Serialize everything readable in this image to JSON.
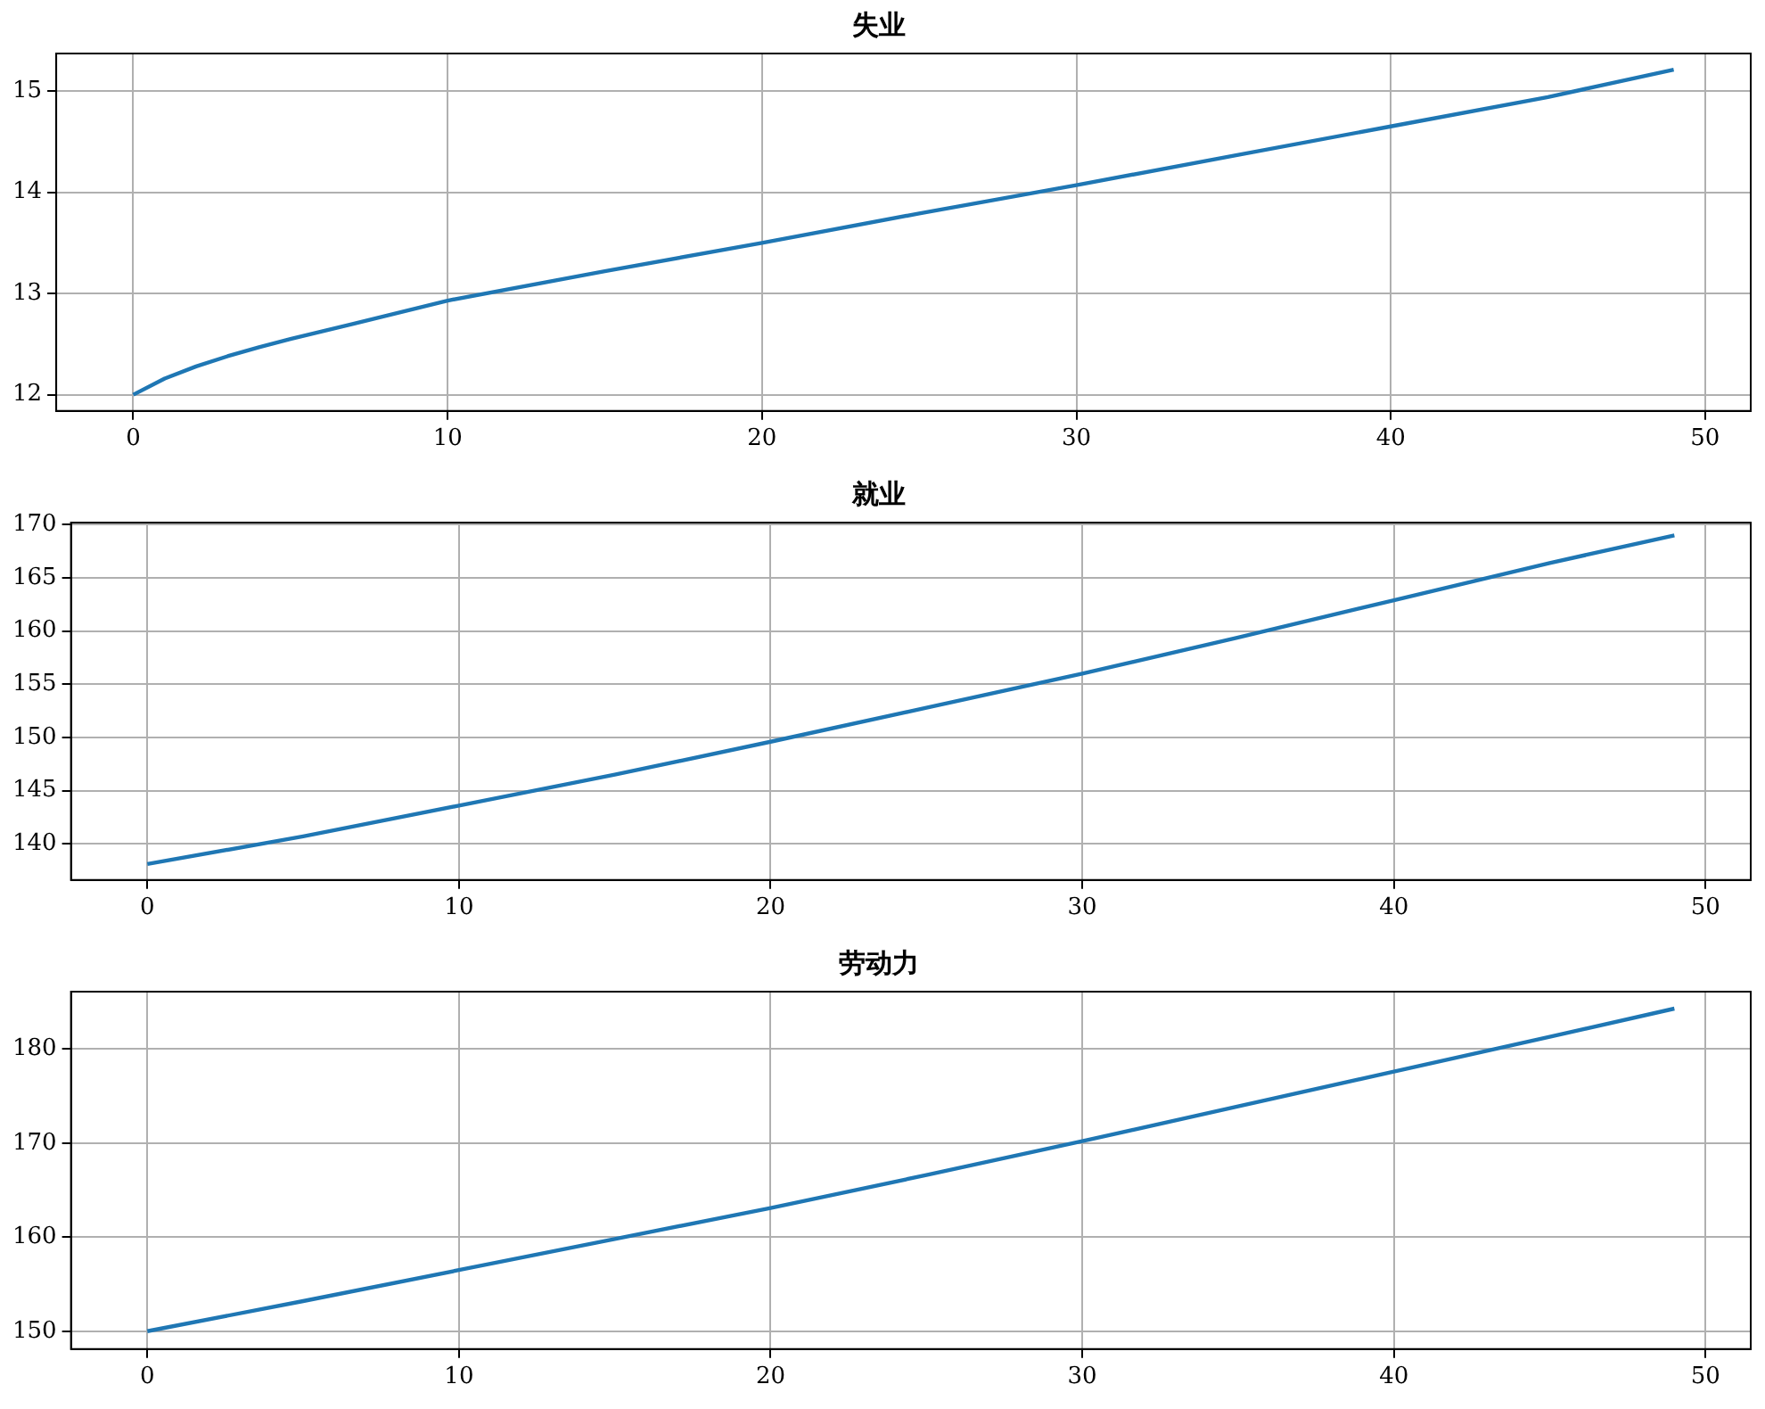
{
  "chart_data": [
    {
      "type": "line",
      "title": "失业",
      "x": [
        0,
        1,
        2,
        3,
        4,
        5,
        7,
        10,
        15,
        20,
        25,
        30,
        35,
        40,
        45,
        49
      ],
      "values": [
        12.0,
        12.16,
        12.28,
        12.38,
        12.47,
        12.55,
        12.7,
        12.93,
        13.22,
        13.5,
        13.79,
        14.07,
        14.36,
        14.65,
        14.94,
        15.21
      ],
      "color": "#1f77b4",
      "xlim": [
        -2.45,
        51.45
      ],
      "xticks": [
        0,
        10,
        20,
        30,
        40,
        50
      ],
      "ylim": [
        11.84,
        15.37
      ],
      "yticks": [
        12,
        13,
        14,
        15
      ],
      "grid": true
    },
    {
      "type": "line",
      "title": "就业",
      "x": [
        0,
        5,
        10,
        15,
        20,
        25,
        30,
        35,
        40,
        45,
        49
      ],
      "values": [
        138.1,
        140.7,
        143.6,
        146.5,
        149.6,
        152.8,
        156.0,
        159.4,
        162.9,
        166.4,
        169.0
      ],
      "color": "#1f77b4",
      "xlim": [
        -2.45,
        51.45
      ],
      "xticks": [
        0,
        10,
        20,
        30,
        40,
        50
      ],
      "ylim": [
        136.6,
        170.2
      ],
      "yticks": [
        140,
        145,
        150,
        155,
        160,
        165,
        170
      ],
      "grid": true
    },
    {
      "type": "line",
      "title": "劳动力",
      "x": [
        0,
        5,
        10,
        15,
        20,
        25,
        30,
        35,
        40,
        45,
        49
      ],
      "values": [
        150.0,
        153.2,
        156.5,
        159.8,
        163.1,
        166.6,
        170.2,
        173.9,
        177.6,
        181.3,
        184.3
      ],
      "color": "#1f77b4",
      "xlim": [
        -2.45,
        51.45
      ],
      "xticks": [
        0,
        10,
        20,
        30,
        40,
        50
      ],
      "ylim": [
        148.1,
        186.1
      ],
      "yticks": [
        150,
        160,
        170,
        180
      ],
      "grid": true
    }
  ]
}
